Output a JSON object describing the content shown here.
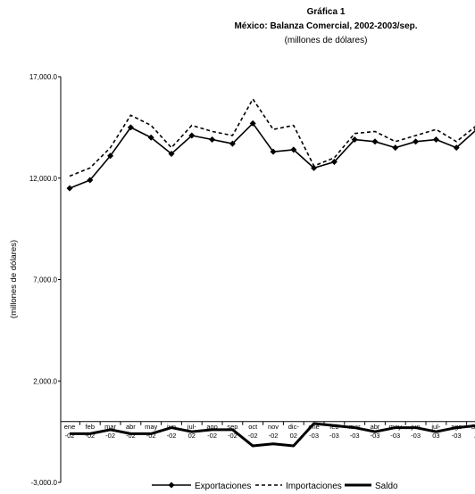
{
  "chart_data": {
    "type": "line",
    "title": "Gráfica 1",
    "subtitle": "México: Balanza Comercial, 2002-2003/sep.",
    "units": "(millones de dólares)",
    "ylabel": "(millones de dólares)",
    "xlabel": "",
    "ylim": [
      -3000,
      17000
    ],
    "yticks": [
      "17,000.0",
      "12,000.0",
      "7,000.0",
      "2,000.0",
      "-3,000.0"
    ],
    "ytick_values": [
      17000,
      12000,
      7000,
      2000,
      -3000
    ],
    "categories": [
      [
        "ene",
        "-02"
      ],
      [
        "feb",
        "-02"
      ],
      [
        "mar",
        "-02"
      ],
      [
        "abr",
        "-02"
      ],
      [
        "may",
        "-02"
      ],
      [
        "jun",
        "-02"
      ],
      [
        "jul-",
        "02"
      ],
      [
        "ago",
        "-02"
      ],
      [
        "sep",
        "-02"
      ],
      [
        "oct",
        "-02"
      ],
      [
        "nov",
        "-02"
      ],
      [
        "dic-",
        "02"
      ],
      [
        "ene",
        "-03"
      ],
      [
        "feb",
        "-03"
      ],
      [
        "mar",
        "-03"
      ],
      [
        "abr",
        "-03"
      ],
      [
        "may",
        "-03"
      ],
      [
        "jun",
        "-03"
      ],
      [
        "jul-",
        "03"
      ],
      [
        "ago",
        "-03"
      ],
      [
        "Sep",
        "/*"
      ]
    ],
    "series": [
      {
        "name": "Exportaciones",
        "style": "solid-diamond",
        "color": "#000000",
        "values": [
          11500,
          11900,
          13100,
          14500,
          14000,
          13200,
          14100,
          13900,
          13700,
          14700,
          13300,
          13400,
          12500,
          12800,
          13900,
          13800,
          13500,
          13800,
          13900,
          13500,
          14400
        ]
      },
      {
        "name": "Importaciones",
        "style": "dashed",
        "color": "#000000",
        "values": [
          12100,
          12500,
          13500,
          15100,
          14600,
          13500,
          14600,
          14300,
          14100,
          15900,
          14400,
          14600,
          12600,
          13000,
          14200,
          14300,
          13800,
          14100,
          14400,
          13800,
          14600
        ]
      },
      {
        "name": "Saldo",
        "style": "thick-solid",
        "color": "#000000",
        "values": [
          -600,
          -600,
          -400,
          -600,
          -600,
          -300,
          -500,
          -400,
          -400,
          -1200,
          -1100,
          -1200,
          -100,
          -200,
          -300,
          -500,
          -300,
          -300,
          -500,
          -300,
          -200
        ]
      }
    ],
    "legend_position": "bottom"
  }
}
